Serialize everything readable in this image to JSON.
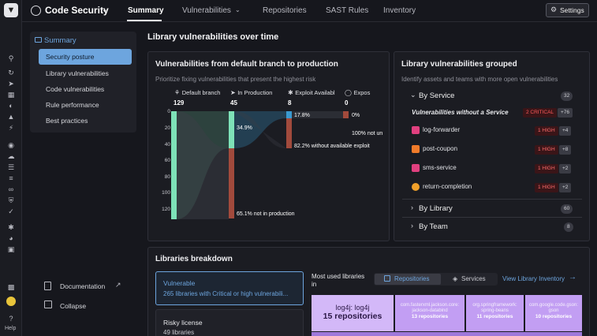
{
  "app": {
    "title": "Code Security",
    "settings_label": "Settings"
  },
  "nav_tabs": [
    {
      "label": "Summary",
      "active": true
    },
    {
      "label": "Vulnerabilities"
    },
    {
      "label": "Repositories"
    },
    {
      "label": "SAST Rules"
    },
    {
      "label": "Inventory"
    }
  ],
  "sidebar": {
    "header": "Summary",
    "items": [
      {
        "label": "Security posture",
        "selected": true
      },
      {
        "label": "Library vulnerabilities"
      },
      {
        "label": "Code vulnerabilities"
      },
      {
        "label": "Rule performance"
      },
      {
        "label": "Best practices"
      }
    ],
    "documentation": "Documentation",
    "collapse": "Collapse",
    "help": "Help"
  },
  "page_title": "Library vulnerabilities over time",
  "sankey": {
    "title": "Vulnerabilities from default branch to production",
    "subtitle": "Prioritize fixing vulnerabilities that present the highest risk",
    "columns": [
      {
        "label": "Default branch",
        "value": "129"
      },
      {
        "label": "In Production",
        "value": "45"
      },
      {
        "label": "Exploit Availabl",
        "value": "8"
      },
      {
        "label": "Expos",
        "value": "0"
      }
    ],
    "y_ticks": [
      "0",
      "20",
      "40",
      "60",
      "80",
      "100",
      "120"
    ],
    "flow_labels": {
      "in_prod_pct": "34.9%",
      "not_in_prod": "65.1% not in production",
      "exploit_pct": "17.8%",
      "no_exploit": "82.2% without available exploit",
      "exposed_pct": "0%",
      "not_exposed": "100% not un"
    }
  },
  "grouped": {
    "title": "Library vulnerabilities grouped",
    "subtitle": "Identify assets and teams with more open vulnerabilities",
    "by_service": {
      "label": "By Service",
      "count": "32"
    },
    "rows": [
      {
        "name": "Vulnerabilities without a Service",
        "badge": "2 CRITICAL",
        "extra": "+76"
      },
      {
        "name": "log-forwarder",
        "badge": "1 HIGH",
        "extra": "+4",
        "color": "#e0407f"
      },
      {
        "name": "post-coupon",
        "badge": "1 HIGH",
        "extra": "+8",
        "color": "#f07b2a"
      },
      {
        "name": "sms-service",
        "badge": "1 HIGH",
        "extra": "+2",
        "color": "#e0407f"
      },
      {
        "name": "return-completion",
        "badge": "1 HIGH",
        "extra": "+2",
        "color": "#f0a02a"
      }
    ],
    "by_library": {
      "label": "By Library",
      "count": "60"
    },
    "by_team": {
      "label": "By Team",
      "count": "8"
    }
  },
  "breakdown": {
    "title": "Libraries breakdown",
    "vulnerable": {
      "title": "Vulnerable",
      "desc": "265 libraries with Critical or high vulnerabili..."
    },
    "risky": {
      "title": "Risky license",
      "desc": "49 libraries"
    },
    "most_used": "Most used libraries in",
    "toggle": [
      "Repositories",
      "Services"
    ],
    "view_inventory": "View Library Inventory",
    "tiles": [
      {
        "name": "log4j: log4j",
        "repos": "15 repositories"
      },
      {
        "name": "com.fasterxml.jackson.core: jackson-databind",
        "repos": "13 repositories"
      },
      {
        "name": "org.springframework: spring-beans",
        "repos": "11 repositories"
      },
      {
        "name": "com.google.code.gson: gson",
        "repos": "10 repositories"
      }
    ]
  },
  "colors": {
    "accent": "#6da5de",
    "green": "#7ee2b8",
    "red": "#a14a3c",
    "teal": "#3a9ad0",
    "tile": "#c9a7f5"
  }
}
